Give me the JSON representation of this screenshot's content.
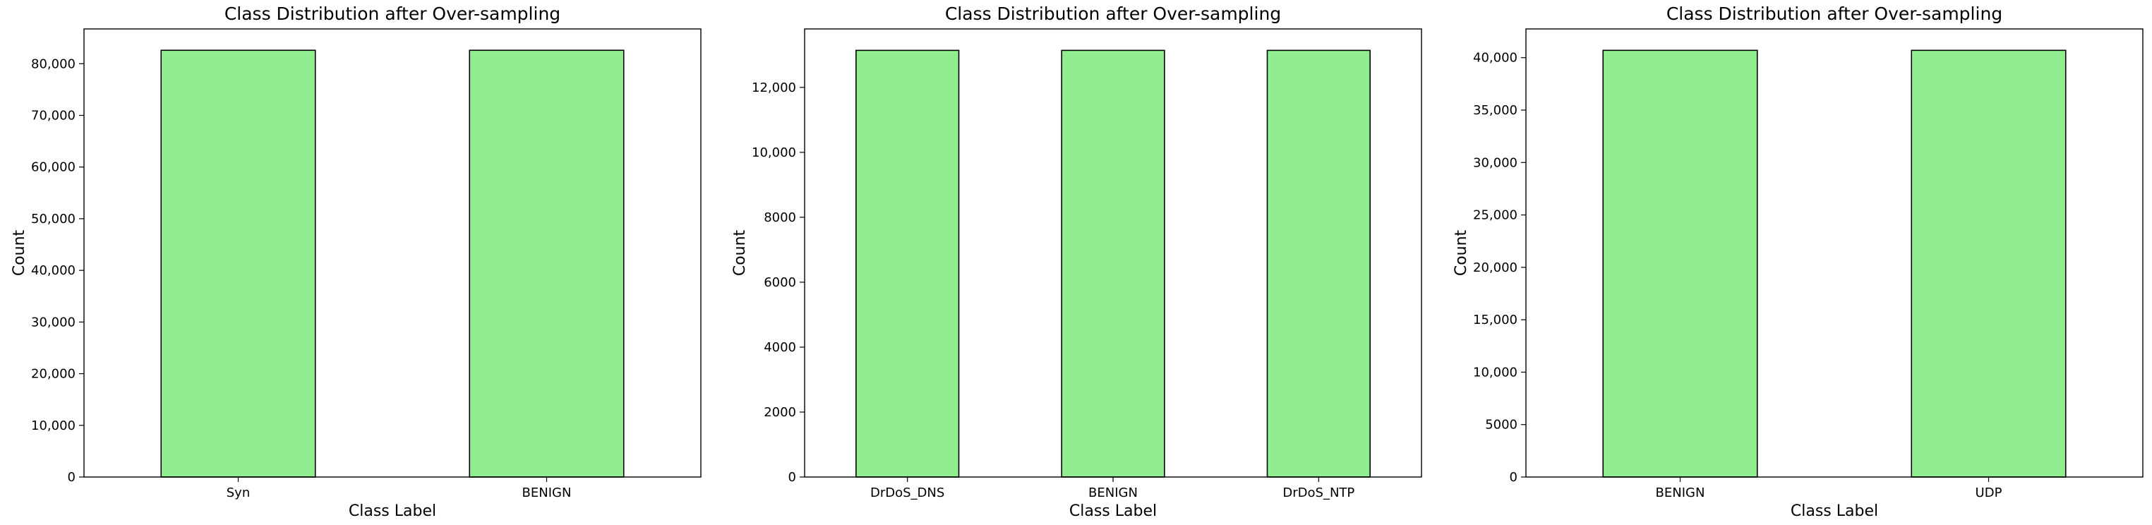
{
  "bar_color": "#90ee90",
  "edge_color": "#000000",
  "chart_data": [
    {
      "type": "bar",
      "title": "Class Distribution after Over-sampling",
      "xlabel": "Class Label",
      "ylabel": "Count",
      "categories": [
        "Syn",
        "BENIGN"
      ],
      "values": [
        82600,
        82600
      ],
      "ylim": [
        0,
        86730
      ],
      "yticks": [
        0,
        10000,
        20000,
        30000,
        40000,
        50000,
        60000,
        70000,
        80000
      ],
      "ytick_labels": [
        "0",
        "10,000",
        "20,000",
        "30,000",
        "40,000",
        "50,000",
        "60,000",
        "70,000",
        "80,000"
      ],
      "grid": false
    },
    {
      "type": "bar",
      "title": "Class Distribution after Over-sampling",
      "xlabel": "Class Label",
      "ylabel": "Count",
      "categories": [
        "DrDoS_DNS",
        "BENIGN",
        "DrDoS_NTP"
      ],
      "values": [
        13140,
        13140,
        13140
      ],
      "ylim": [
        0,
        13800
      ],
      "yticks": [
        0,
        2000,
        4000,
        6000,
        8000,
        10000,
        12000
      ],
      "ytick_labels": [
        "0",
        "2000",
        "4000",
        "6000",
        "8000",
        "10,000",
        "12,000"
      ],
      "grid": false
    },
    {
      "type": "bar",
      "title": "Class Distribution after Over-sampling",
      "xlabel": "Class Label",
      "ylabel": "Count",
      "categories": [
        "BENIGN",
        "UDP"
      ],
      "values": [
        40700,
        40700
      ],
      "ylim": [
        0,
        42740
      ],
      "yticks": [
        0,
        5000,
        10000,
        15000,
        20000,
        25000,
        30000,
        35000,
        40000
      ],
      "ytick_labels": [
        "0",
        "5000",
        "10,000",
        "15,000",
        "20,000",
        "25,000",
        "30,000",
        "35,000",
        "40,000"
      ],
      "grid": false
    }
  ]
}
